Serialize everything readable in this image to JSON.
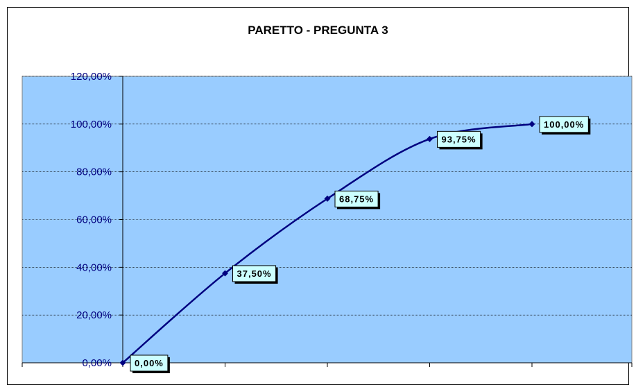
{
  "chart_data": {
    "type": "line",
    "title": "PARETTO - PREGUNTA 3",
    "x": [
      0,
      1,
      2,
      3,
      4
    ],
    "values": [
      0,
      37.5,
      68.75,
      93.75,
      100
    ],
    "data_labels": [
      "0,00%",
      "37,50%",
      "68,75%",
      "93,75%",
      "100,00%"
    ],
    "yticks": [
      "0,00%",
      "20,00%",
      "40,00%",
      "60,00%",
      "80,00%",
      "100,00%",
      "120,00%"
    ],
    "ylim": [
      0,
      120
    ],
    "grid": true,
    "legend": "none",
    "colors": {
      "plot_bg": "#99ccff",
      "line": "#000080",
      "label_bg": "#ccffff",
      "grid": "#000000"
    }
  }
}
